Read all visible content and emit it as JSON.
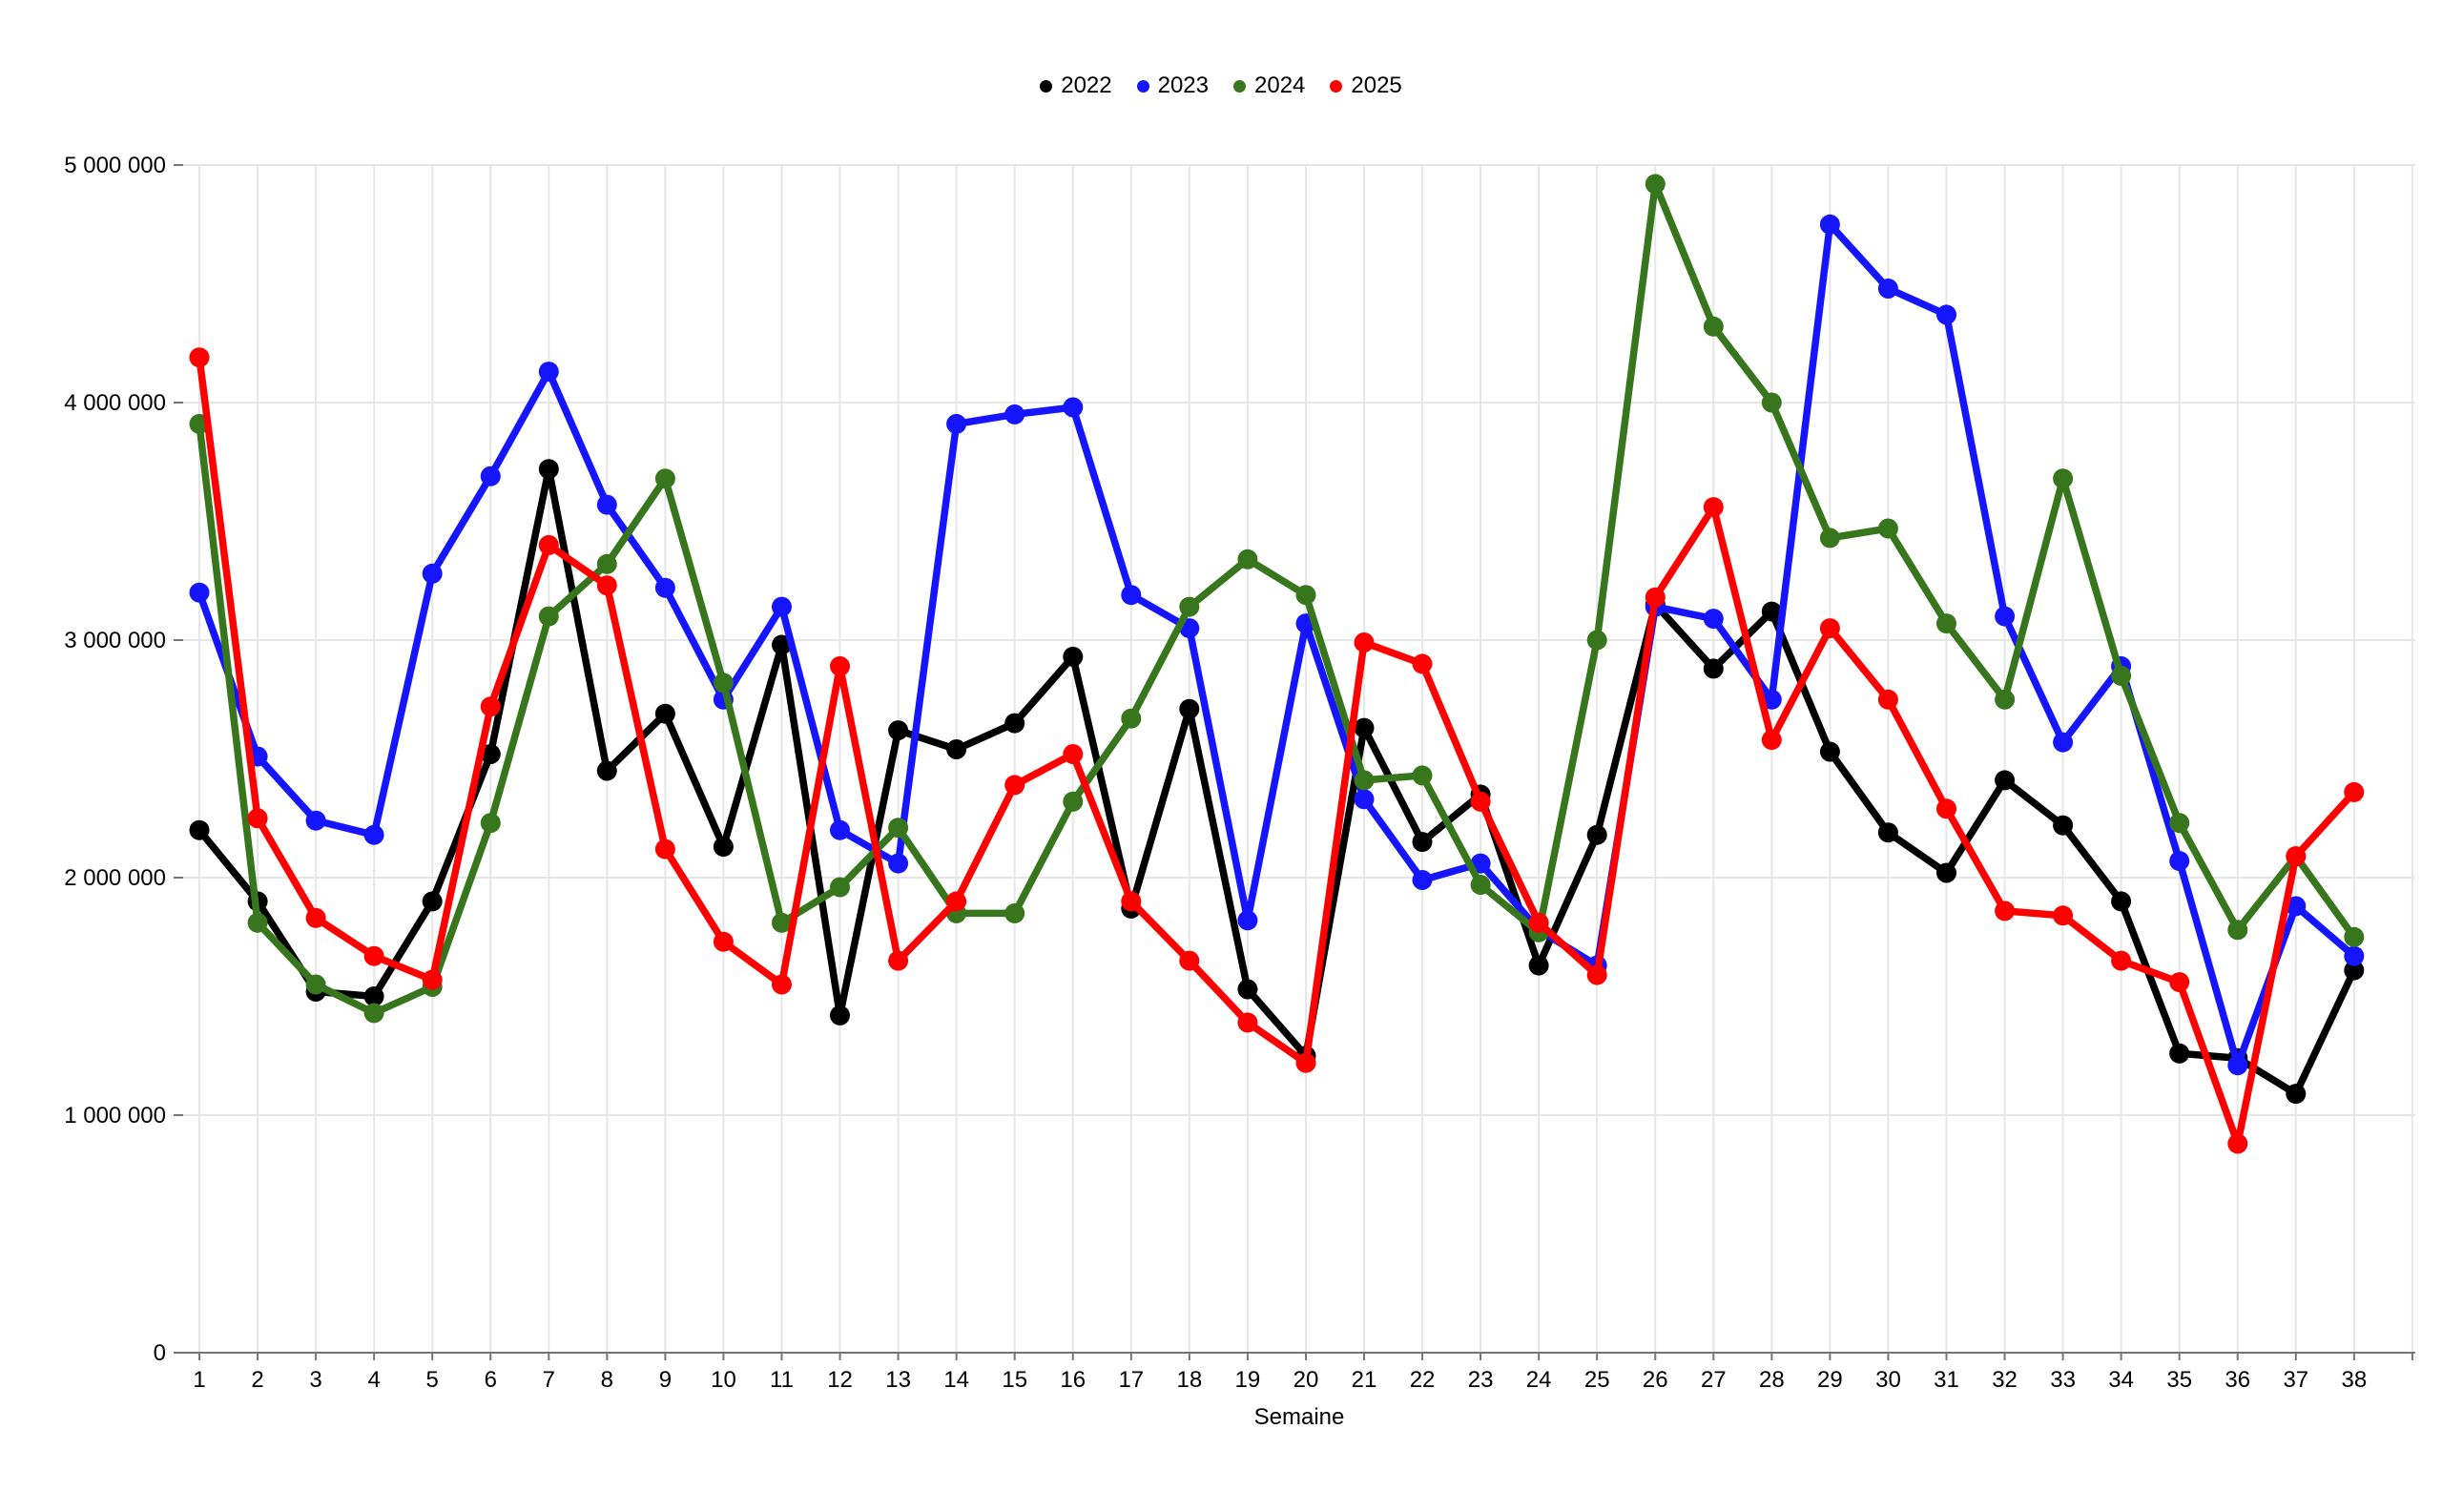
{
  "chart_data": {
    "type": "line",
    "title": "",
    "xlabel": "Semaine",
    "ylabel": "",
    "legend_position": "top",
    "grid": true,
    "ylim": [
      0,
      5000000
    ],
    "y_tick_values": [
      0,
      1000000,
      2000000,
      3000000,
      4000000,
      5000000
    ],
    "y_tick_labels": [
      "0",
      "1 000 000",
      "2 000 000",
      "3 000 000",
      "4 000 000",
      "5 000 000"
    ],
    "categories": [
      1,
      2,
      3,
      4,
      5,
      6,
      7,
      8,
      9,
      10,
      11,
      12,
      13,
      14,
      15,
      16,
      17,
      18,
      19,
      20,
      21,
      22,
      23,
      24,
      25,
      26,
      27,
      28,
      29,
      30,
      31,
      32,
      33,
      34,
      35,
      36,
      37,
      38
    ],
    "axis_color": "#757575",
    "gridline_color": "#e6e6e6",
    "series": [
      {
        "name": "2022",
        "color": "#000000",
        "values": [
          2200000,
          1900000,
          1520000,
          1500000,
          1900000,
          2520000,
          3720000,
          2450000,
          2690000,
          2130000,
          2980000,
          1420000,
          2620000,
          2540000,
          2650000,
          2930000,
          1870000,
          2710000,
          1530000,
          1250000,
          2630000,
          2150000,
          2350000,
          1630000,
          2180000,
          3150000,
          2880000,
          3120000,
          2530000,
          2190000,
          2020000,
          2410000,
          2220000,
          1900000,
          1260000,
          1240000,
          1090000,
          1610000
        ]
      },
      {
        "name": "2023",
        "color": "#1515ff",
        "values": [
          3200000,
          2510000,
          2240000,
          2180000,
          3280000,
          3690000,
          4130000,
          3570000,
          3220000,
          2750000,
          3140000,
          2200000,
          2060000,
          3910000,
          3950000,
          3980000,
          3190000,
          3050000,
          1820000,
          3070000,
          2330000,
          1990000,
          2060000,
          1780000,
          1630000,
          3140000,
          3090000,
          2750000,
          4750000,
          4480000,
          4370000,
          3100000,
          2570000,
          2890000,
          2070000,
          1210000,
          1880000,
          1670000
        ]
      },
      {
        "name": "2024",
        "color": "#38761d",
        "values": [
          3910000,
          1810000,
          1550000,
          1430000,
          1540000,
          2230000,
          3100000,
          3320000,
          3680000,
          2820000,
          1810000,
          1960000,
          2210000,
          1850000,
          1850000,
          2320000,
          2670000,
          3140000,
          3340000,
          3190000,
          2410000,
          2430000,
          1970000,
          1770000,
          3000000,
          4920000,
          4320000,
          4000000,
          3430000,
          3470000,
          3070000,
          2750000,
          3680000,
          2850000,
          2230000,
          1780000,
          2090000,
          1750000
        ]
      },
      {
        "name": "2025",
        "color": "#ff0000",
        "values": [
          4190000,
          2250000,
          1830000,
          1670000,
          1570000,
          2720000,
          3400000,
          3230000,
          2120000,
          1730000,
          1550000,
          2890000,
          1650000,
          1900000,
          2390000,
          2520000,
          1900000,
          1650000,
          1390000,
          1220000,
          2990000,
          2900000,
          2320000,
          1810000,
          1590000,
          3180000,
          3560000,
          2580000,
          3050000,
          2750000,
          2290000,
          1860000,
          1840000,
          1650000,
          1560000,
          880000,
          2090000,
          2360000
        ]
      }
    ]
  }
}
